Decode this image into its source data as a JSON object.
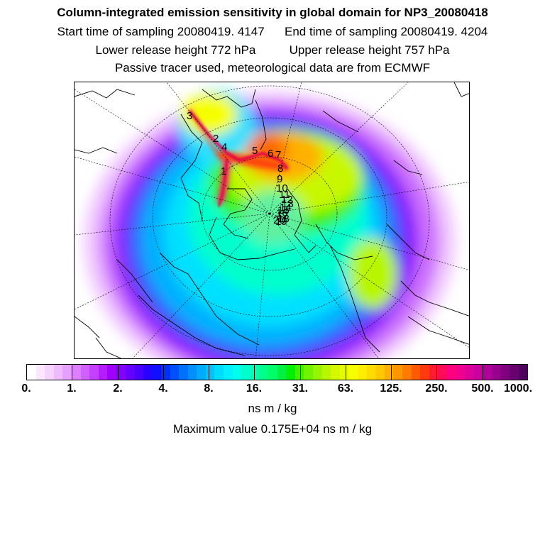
{
  "header": {
    "title": "Column-integrated emission sensitivity in global domain for NP3_20080418",
    "start_time": "Start time of sampling 20080419.  4147",
    "end_time": "End time of sampling 20080419.  4204",
    "lower_height": "Lower release height  772 hPa",
    "upper_height": "Upper release height  757 hPa",
    "note": "Passive tracer used, meteorological data are from ECMWF"
  },
  "map": {
    "projection": "polar stereographic (north)",
    "trajectory_labels": [
      "3",
      "2",
      "4",
      "5",
      "6",
      "7",
      "8",
      "9",
      "10",
      "11",
      "12",
      "13",
      "14",
      "15",
      "16",
      "17",
      "18",
      "19",
      "20",
      "1"
    ]
  },
  "colorbar": {
    "tick_labels": [
      "0.",
      "1.",
      "2.",
      "4.",
      "8.",
      "16.",
      "31.",
      "63.",
      "125.",
      "250.",
      "500.",
      "1000."
    ],
    "colors": [
      "#ffffff",
      "#fbe8ff",
      "#f6d2ff",
      "#efbaff",
      "#e6a0ff",
      "#dc80ff",
      "#d060ff",
      "#c440ff",
      "#b41cff",
      "#9f00ff",
      "#8400ff",
      "#6600ff",
      "#4a00ff",
      "#2a00ff",
      "#0f10ff",
      "#0030ff",
      "#0050ff",
      "#0070ff",
      "#0090ff",
      "#00aaff",
      "#00c4ff",
      "#00dcff",
      "#00f0ff",
      "#00ffee",
      "#00ffcc",
      "#00ffaa",
      "#00ff88",
      "#00ff66",
      "#00f040",
      "#00ee00",
      "#40f000",
      "#70f200",
      "#98f400",
      "#b8f600",
      "#d4f800",
      "#e8fa00",
      "#f6ff00",
      "#ffee00",
      "#ffdc00",
      "#ffc800",
      "#ffb000",
      "#ff9600",
      "#ff7a00",
      "#ff5a00",
      "#ff3a10",
      "#ff1a30",
      "#ff0a5a",
      "#ff0080",
      "#f00090",
      "#dc009a",
      "#c800a0",
      "#b0009c",
      "#980090",
      "#800080",
      "#680070",
      "#4f005f"
    ],
    "unit": "ns m / kg",
    "max_value": "Maximum value  0.175E+04 ns m / kg"
  }
}
